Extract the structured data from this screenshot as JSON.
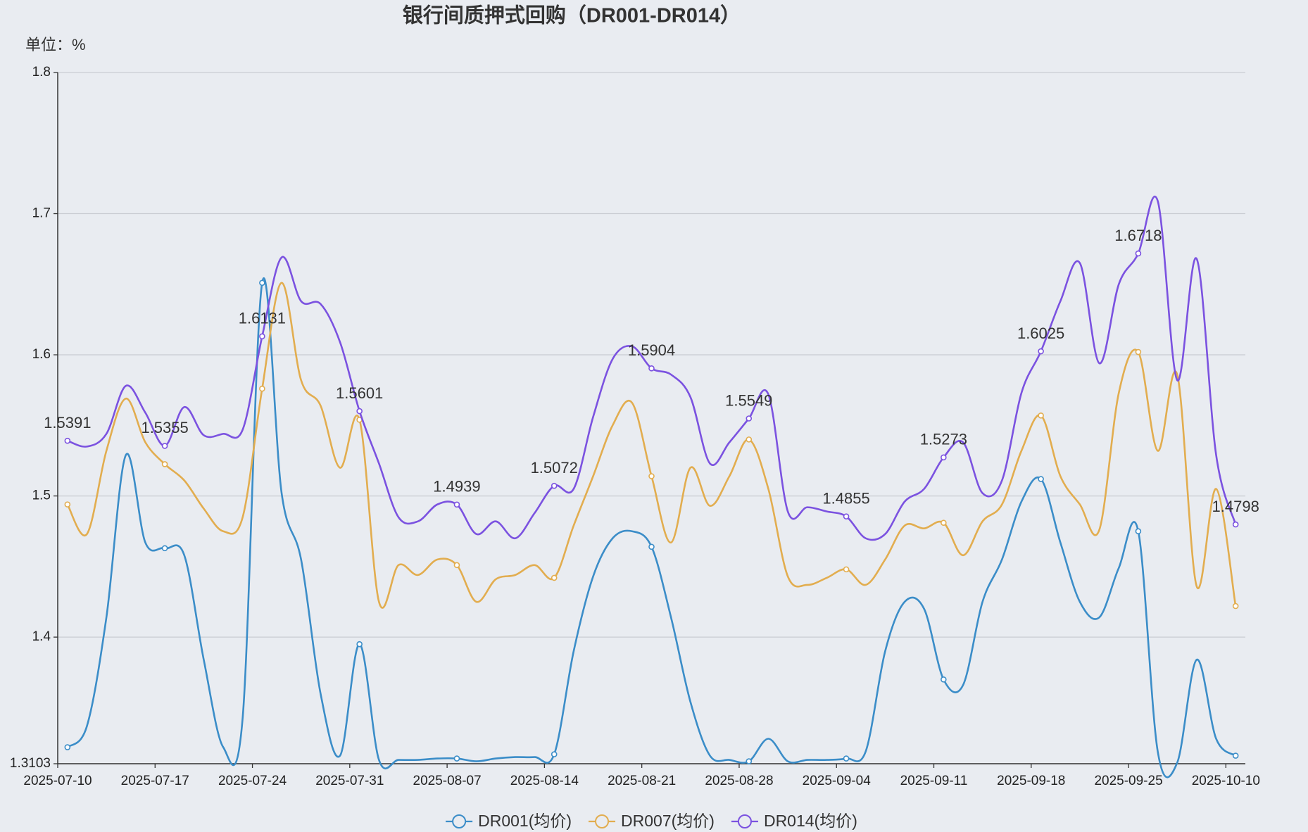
{
  "chart_data": {
    "type": "line",
    "title": "银行间质押式回购（DR001-DR014）",
    "y_label": "单位：%",
    "categories": [
      "2025-07-10",
      null,
      null,
      null,
      null,
      "2025-07-17",
      null,
      null,
      null,
      null,
      "2025-07-24",
      null,
      null,
      null,
      null,
      "2025-07-31",
      null,
      null,
      null,
      null,
      "2025-08-07",
      null,
      null,
      null,
      null,
      "2025-08-14",
      null,
      null,
      null,
      null,
      "2025-08-21",
      null,
      null,
      null,
      null,
      "2025-08-28",
      null,
      null,
      null,
      null,
      "2025-09-04",
      null,
      null,
      null,
      null,
      "2025-09-11",
      null,
      null,
      null,
      null,
      "2025-09-18",
      null,
      null,
      null,
      null,
      "2025-09-25",
      null,
      null,
      null,
      null,
      "2025-10-10"
    ],
    "series": [
      {
        "name": "DR001(均价)",
        "color": "#3b8dc8",
        "values": [
          1.322,
          1.337,
          1.414,
          1.529,
          1.467,
          1.463,
          1.458,
          1.384,
          1.322,
          1.343,
          1.651,
          1.502,
          1.455,
          1.36,
          1.316,
          1.395,
          1.313,
          1.313,
          1.313,
          1.314,
          1.314,
          1.312,
          1.314,
          1.315,
          1.315,
          1.317,
          1.39,
          1.443,
          1.47,
          1.475,
          1.464,
          1.414,
          1.354,
          1.316,
          1.313,
          1.312,
          1.328,
          1.312,
          1.313,
          1.313,
          1.314,
          1.319,
          1.39,
          1.425,
          1.42,
          1.37,
          1.366,
          1.425,
          1.455,
          1.496,
          1.512,
          1.467,
          1.425,
          1.414,
          1.449,
          1.475,
          1.319,
          1.311,
          1.384,
          1.328,
          1.316
        ]
      },
      {
        "name": "DR007(均价)",
        "color": "#e2ad4f",
        "values": [
          1.494,
          1.473,
          1.532,
          1.569,
          1.538,
          1.5225,
          1.511,
          1.491,
          1.475,
          1.485,
          1.576,
          1.651,
          1.582,
          1.564,
          1.52,
          1.554,
          1.425,
          1.451,
          1.444,
          1.455,
          1.451,
          1.425,
          1.441,
          1.444,
          1.451,
          1.442,
          1.479,
          1.514,
          1.55,
          1.566,
          1.514,
          1.467,
          1.52,
          1.493,
          1.514,
          1.54,
          1.505,
          1.443,
          1.437,
          1.442,
          1.448,
          1.437,
          1.455,
          1.479,
          1.477,
          1.481,
          1.458,
          1.482,
          1.494,
          1.532,
          1.557,
          1.514,
          1.494,
          1.476,
          1.573,
          1.602,
          1.532,
          1.586,
          1.436,
          1.505,
          1.422
        ]
      },
      {
        "name": "DR014(均价)",
        "color": "#7b52e0",
        "show_labels": true,
        "values": [
          1.5391,
          1.535,
          1.544,
          1.578,
          1.559,
          1.5355,
          1.563,
          1.543,
          1.544,
          1.547,
          1.6131,
          1.669,
          1.638,
          1.636,
          1.609,
          1.5601,
          1.523,
          1.485,
          1.482,
          1.494,
          1.4939,
          1.473,
          1.482,
          1.47,
          1.488,
          1.5072,
          1.505,
          1.556,
          1.597,
          1.606,
          1.5904,
          1.586,
          1.57,
          1.523,
          1.538,
          1.5549,
          1.572,
          1.489,
          1.492,
          1.489,
          1.4855,
          1.47,
          1.473,
          1.496,
          1.505,
          1.5273,
          1.538,
          1.502,
          1.511,
          1.573,
          1.6025,
          1.638,
          1.665,
          1.594,
          1.65,
          1.6718,
          1.709,
          1.582,
          1.668,
          1.529,
          1.4798
        ]
      }
    ],
    "ylim": [
      1.3103,
      1.8
    ],
    "yticks": [
      1.3103,
      1.4,
      1.5,
      1.6,
      1.7,
      1.8
    ],
    "grid": true,
    "smooth": true,
    "legend": "bottom"
  }
}
